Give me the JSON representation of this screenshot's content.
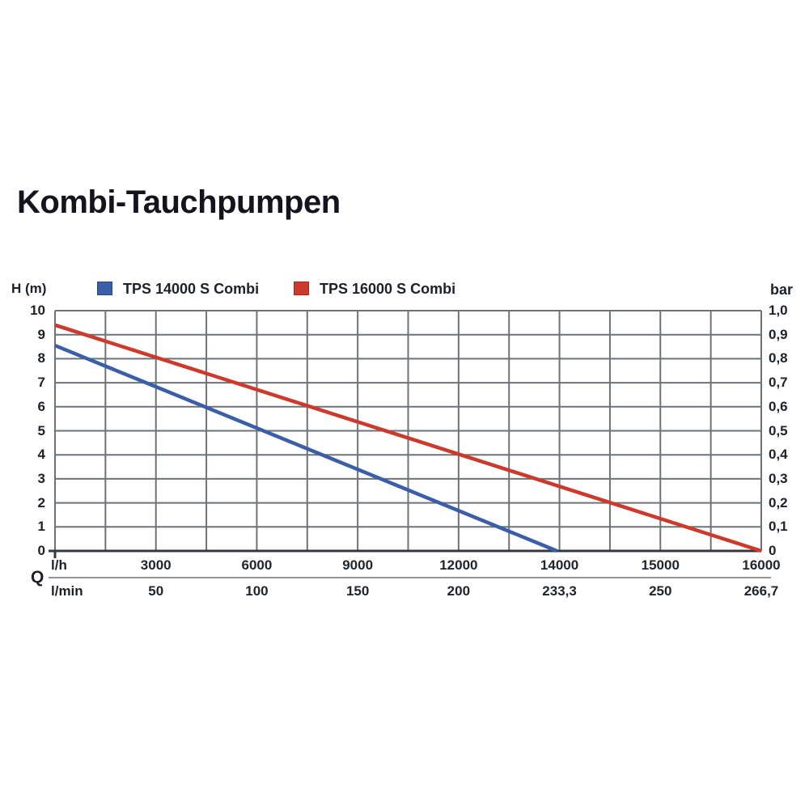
{
  "chart_data": {
    "type": "line",
    "title": "Kombi-Tauchpumpen",
    "legend": [
      {
        "label": "TPS 14000 S Combi",
        "color": "#3a5fa8"
      },
      {
        "label": "TPS 16000 S Combi",
        "color": "#cd3a2c"
      }
    ],
    "y_left": {
      "label": "H (m)",
      "min": 0,
      "max": 10,
      "ticks": [
        "10",
        "9",
        "8",
        "7",
        "6",
        "5",
        "4",
        "3",
        "2",
        "1",
        "0"
      ]
    },
    "y_right": {
      "label": "bar",
      "min": 0,
      "max": 1.0,
      "ticks": [
        "1,0",
        "0,9",
        "0,8",
        "0,7",
        "0,6",
        "0,5",
        "0,4",
        "0,3",
        "0,2",
        "0,1",
        "0"
      ]
    },
    "x_axis": {
      "unit_top": "l/h",
      "unit_bottom": "l/min",
      "q_label": "Q",
      "grid_intervals": 14,
      "label_grid_indices": [
        2,
        4,
        6,
        8,
        10,
        12,
        14
      ],
      "labels_lh": [
        "3000",
        "6000",
        "9000",
        "12000",
        "14000",
        "15000",
        "16000"
      ],
      "labels_lmin": [
        "50",
        "100",
        "150",
        "200",
        "233,3",
        "250",
        "266,7"
      ],
      "scale_segments": [
        {
          "from_index": 0,
          "to_index": 8,
          "from_lh": 0,
          "to_lh": 12000
        },
        {
          "from_index": 8,
          "to_index": 10,
          "from_lh": 12000,
          "to_lh": 14000
        },
        {
          "from_index": 10,
          "to_index": 14,
          "from_lh": 14000,
          "to_lh": 16000
        }
      ]
    },
    "grid": true,
    "series": [
      {
        "name": "TPS 14000 S Combi",
        "color": "#3a5fa8",
        "points": [
          {
            "lh": 0,
            "h_m": 8.55
          },
          {
            "lh": 13950,
            "h_m": 0
          }
        ]
      },
      {
        "name": "TPS 16000 S Combi",
        "color": "#cd3a2c",
        "points": [
          {
            "lh": 0,
            "h_m": 9.4
          },
          {
            "lh": 16000,
            "h_m": 0
          }
        ]
      }
    ],
    "colors": {
      "grid_line": "#6e7378",
      "axis_bottom": "#35383c",
      "text": "#1d2128"
    }
  }
}
